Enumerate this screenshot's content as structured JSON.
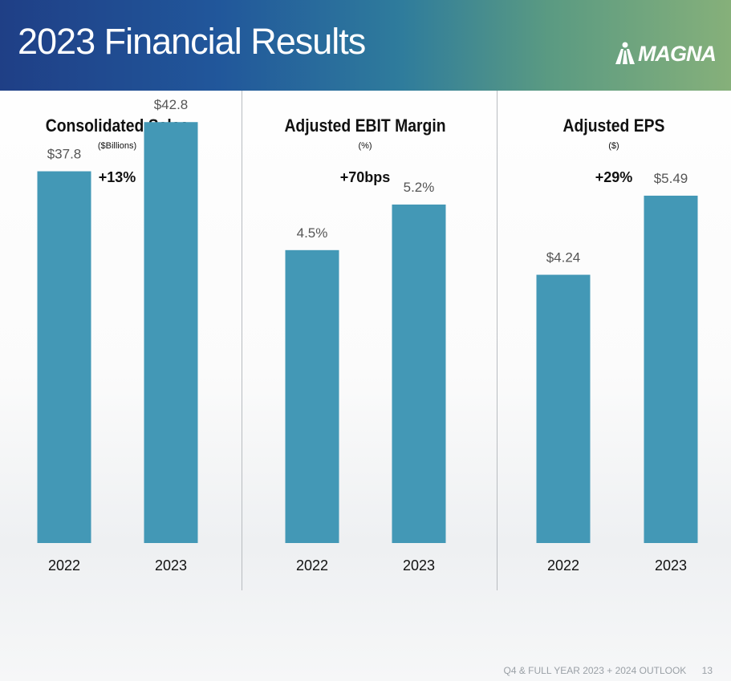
{
  "slide": {
    "title": "2023 Financial Results",
    "logo_text": "MAGNA",
    "footer_text": "Q4 & FULL YEAR 2023 + 2024 OUTLOOK",
    "page_number": "13"
  },
  "colors": {
    "bar": "#4398b6",
    "title_text": "#111111",
    "label_text": "#555555",
    "header_text": "#ffffff"
  },
  "chart_data": [
    {
      "type": "bar",
      "title": "Consolidated Sales",
      "subtitle": "($Billions)",
      "change": "+13%",
      "categories": [
        "2022",
        "2023"
      ],
      "values": [
        37.8,
        42.8
      ],
      "value_labels": [
        "$37.8",
        "$42.8"
      ],
      "ylim": [
        0,
        46
      ]
    },
    {
      "type": "bar",
      "title": "Adjusted EBIT Margin",
      "subtitle": "(%)",
      "change": "+70bps",
      "categories": [
        "2022",
        "2023"
      ],
      "values": [
        4.5,
        5.2
      ],
      "value_labels": [
        "4.5%",
        "5.2%"
      ],
      "ylim": [
        0,
        6.95
      ]
    },
    {
      "type": "bar",
      "title": "Adjusted EPS",
      "subtitle": "($)",
      "change": "+29%",
      "categories": [
        "2022",
        "2023"
      ],
      "values": [
        4.24,
        5.49
      ],
      "value_labels": [
        "$4.24",
        "$5.49"
      ],
      "ylim": [
        0,
        7.15
      ]
    }
  ]
}
